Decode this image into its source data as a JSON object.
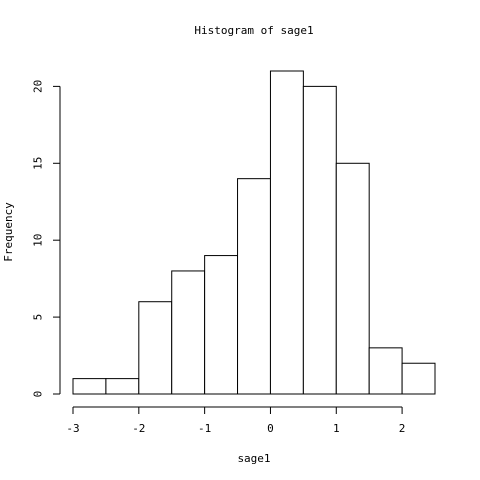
{
  "chart_data": {
    "type": "bar",
    "subtype": "histogram",
    "title": "Histogram of sage1",
    "xlabel": "sage1",
    "ylabel": "Frequency",
    "bins": [
      {
        "from": -3.0,
        "to": -2.5,
        "count": 1
      },
      {
        "from": -2.5,
        "to": -2.0,
        "count": 1
      },
      {
        "from": -2.0,
        "to": -1.5,
        "count": 6
      },
      {
        "from": -1.5,
        "to": -1.0,
        "count": 8
      },
      {
        "from": -1.0,
        "to": -0.5,
        "count": 9
      },
      {
        "from": -0.5,
        "to": 0.0,
        "count": 14
      },
      {
        "from": 0.0,
        "to": 0.5,
        "count": 21
      },
      {
        "from": 0.5,
        "to": 1.0,
        "count": 20
      },
      {
        "from": 1.0,
        "to": 1.5,
        "count": 15
      },
      {
        "from": 1.5,
        "to": 2.0,
        "count": 3
      },
      {
        "from": 2.0,
        "to": 2.5,
        "count": 2
      }
    ],
    "x_ticks": [
      -3,
      -2,
      -1,
      0,
      1,
      2
    ],
    "x_tick_labels": [
      "-3",
      "-2",
      "-1",
      "0",
      "1",
      "2"
    ],
    "y_ticks": [
      0,
      5,
      10,
      15,
      20
    ],
    "y_tick_labels": [
      "0",
      "5",
      "10",
      "15",
      "20"
    ],
    "xlim": [
      -3.0,
      2.5
    ],
    "ylim": [
      0,
      21
    ],
    "bar_fill": "#ffffff",
    "bar_stroke": "#000000",
    "grid": false,
    "legend": "none"
  }
}
